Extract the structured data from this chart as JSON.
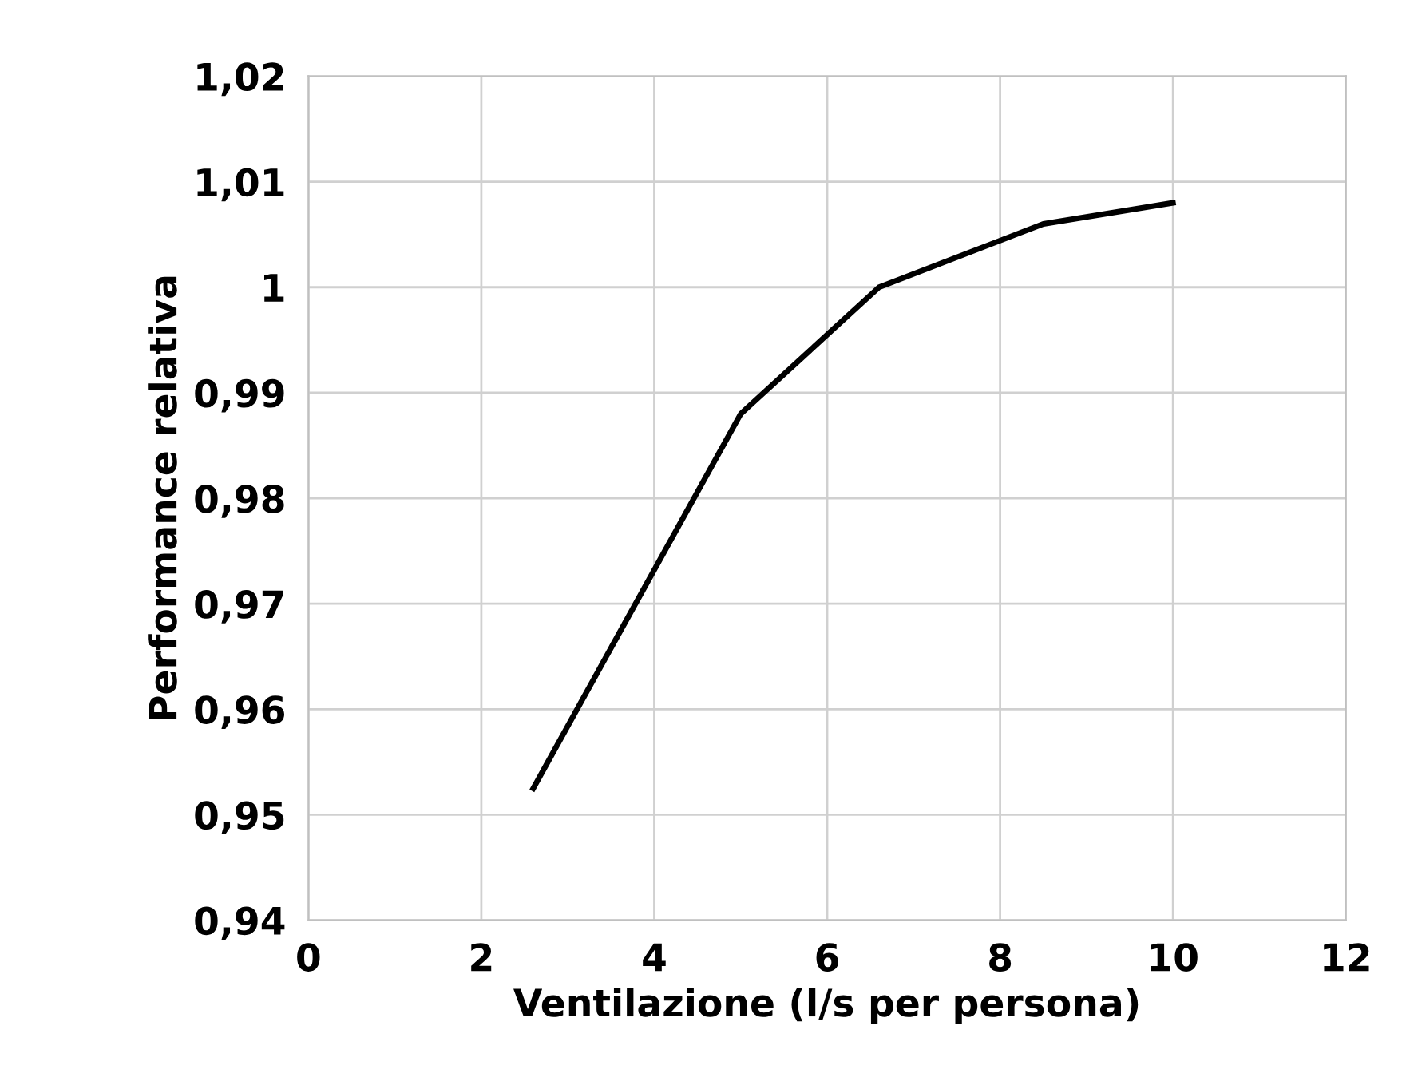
{
  "chart_data": {
    "type": "line",
    "xlabel": "Ventilazione (l/s per persona)",
    "ylabel": "Performance relativa",
    "series": [
      {
        "x": [
          2.6,
          5,
          6.6,
          8.5,
          10
        ],
        "values": [
          0.9525,
          0.988,
          1.0,
          1.006,
          1.008
        ],
        "color": "#000000"
      }
    ],
    "xlim": [
      0,
      12
    ],
    "xticks": [
      0,
      2,
      4,
      6,
      8,
      10,
      12
    ],
    "ylim": [
      0.94,
      1.02
    ],
    "yticks": [
      {
        "value": 0.94,
        "label": "0,94"
      },
      {
        "value": 0.95,
        "label": "0,95"
      },
      {
        "value": 0.96,
        "label": "0,96"
      },
      {
        "value": 0.97,
        "label": "0,97"
      },
      {
        "value": 0.98,
        "label": "0,98"
      },
      {
        "value": 0.99,
        "label": "0,99"
      },
      {
        "value": 1,
        "label": "1"
      },
      {
        "value": 1.01,
        "label": "1,01"
      },
      {
        "value": 1.02,
        "label": "1,02"
      }
    ],
    "grid": true,
    "marker": "none",
    "line_style": "solid"
  }
}
